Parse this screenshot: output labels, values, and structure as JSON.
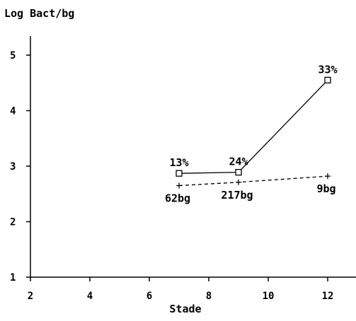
{
  "chart_data": {
    "type": "line",
    "title": "",
    "ylabel": "Log Bact/bg",
    "xlabel": "Stade",
    "xlim": [
      1,
      13
    ],
    "ylim": [
      1,
      5.4
    ],
    "xticks": [
      2,
      4,
      6,
      8,
      10,
      12
    ],
    "yticks": [
      1,
      2,
      3,
      4,
      5
    ],
    "grid": false,
    "series": [
      {
        "style": "solid",
        "marker": "square",
        "points": [
          {
            "x": 7,
            "y": 2.87,
            "label": "13%"
          },
          {
            "x": 9,
            "y": 2.89,
            "label": "24%"
          },
          {
            "x": 12,
            "y": 4.55,
            "label": "33%"
          }
        ]
      },
      {
        "style": "dashed",
        "marker": "plus",
        "points": [
          {
            "x": 7,
            "y": 2.65,
            "label": "62bg"
          },
          {
            "x": 9,
            "y": 2.71,
            "label": "217bg"
          },
          {
            "x": 12,
            "y": 2.82,
            "label": "9bg"
          }
        ]
      }
    ]
  }
}
